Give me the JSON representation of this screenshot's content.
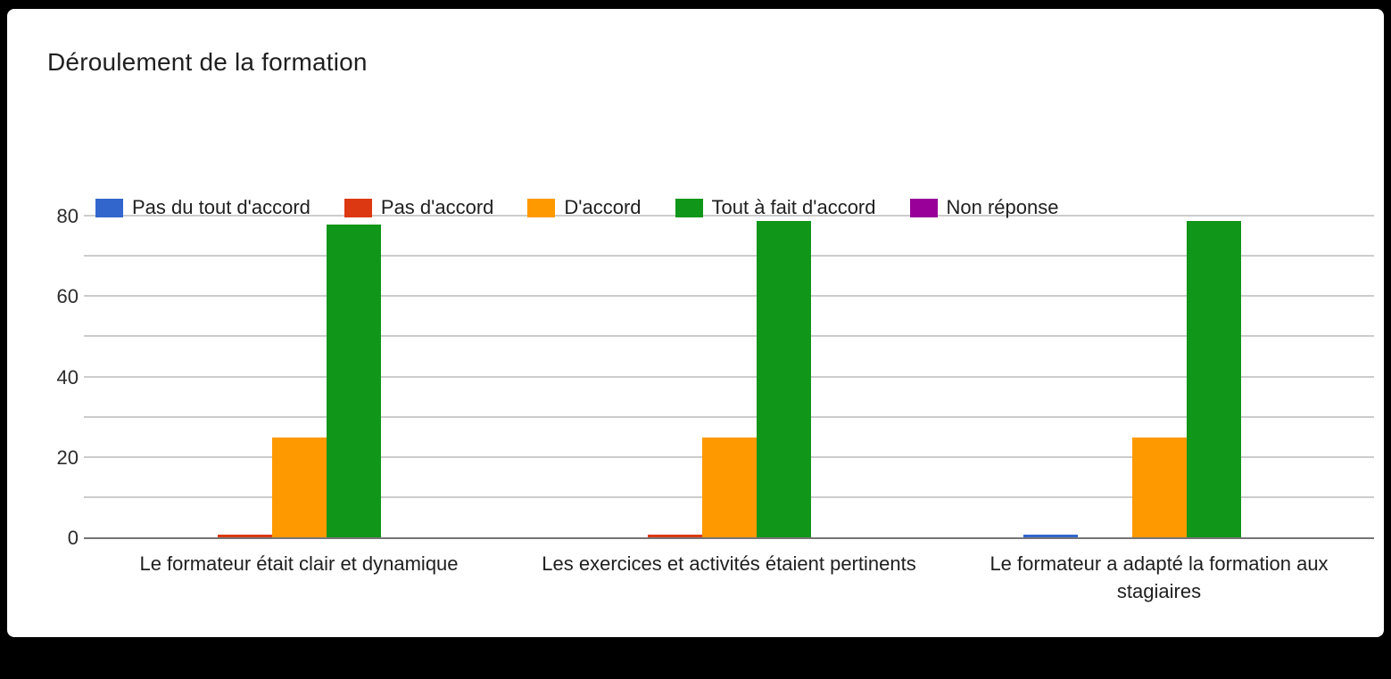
{
  "page": {
    "background_color": "#000000",
    "card_background_color": "#ffffff"
  },
  "chart_data": {
    "type": "bar",
    "title": "Déroulement de la formation",
    "categories": [
      "Le formateur était clair et dynamique",
      "Les exercices et activités étaient pertinents",
      "Le formateur a adapté la formation aux stagiaires"
    ],
    "series": [
      {
        "name": "Pas du tout d'accord",
        "color": "#3366CC",
        "values": [
          0,
          0,
          1
        ]
      },
      {
        "name": "Pas d'accord",
        "color": "#DC3912",
        "values": [
          1,
          1,
          0
        ]
      },
      {
        "name": "D'accord",
        "color": "#FF9900",
        "values": [
          25,
          25,
          25
        ]
      },
      {
        "name": "Tout à fait d'accord",
        "color": "#109618",
        "values": [
          78,
          79,
          79
        ]
      },
      {
        "name": "Non réponse",
        "color": "#990099",
        "values": [
          0,
          0,
          0
        ]
      }
    ],
    "ylim": [
      0,
      80
    ],
    "yticks": [
      0,
      20,
      40,
      60,
      80
    ],
    "grid_step": 10,
    "grid": "on",
    "legend_position": "top",
    "xlabel": "",
    "ylabel": ""
  }
}
